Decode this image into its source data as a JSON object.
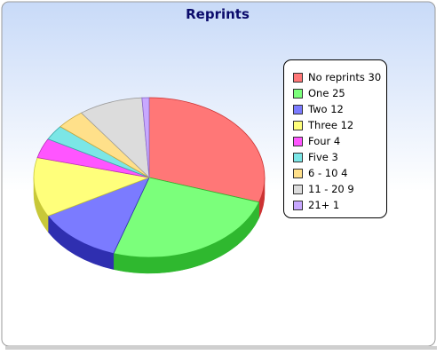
{
  "chart_data": {
    "type": "pie",
    "title": "Reprints",
    "legend_position": "right",
    "slices": [
      {
        "label": "No reprints",
        "value": 30,
        "legend": "No reprints 30",
        "color": "#ff7777",
        "side": "#cc3333"
      },
      {
        "label": "One",
        "value": 25,
        "legend": "One 25",
        "color": "#7bff7b",
        "side": "#2fb82f"
      },
      {
        "label": "Two",
        "value": 12,
        "legend": "Two 12",
        "color": "#7b7bff",
        "side": "#2f2fb0"
      },
      {
        "label": "Three",
        "value": 12,
        "legend": "Three 12",
        "color": "#ffff7b",
        "side": "#c8c838"
      },
      {
        "label": "Four",
        "value": 4,
        "legend": "Four 4",
        "color": "#ff55ff",
        "side": "#b82fb8"
      },
      {
        "label": "Five",
        "value": 3,
        "legend": "Five 3",
        "color": "#7be6e6",
        "side": "#3aa8a8"
      },
      {
        "label": "6 - 10",
        "value": 4,
        "legend": "6 - 10 4",
        "color": "#ffe08a",
        "side": "#c9a93e"
      },
      {
        "label": "11 - 20",
        "value": 9,
        "legend": "11 - 20 9",
        "color": "#dcdcdc",
        "side": "#9d9d9d"
      },
      {
        "label": "21+",
        "value": 1,
        "legend": "21+ 1",
        "color": "#c8a8ff",
        "side": "#8a6ac8"
      }
    ]
  }
}
